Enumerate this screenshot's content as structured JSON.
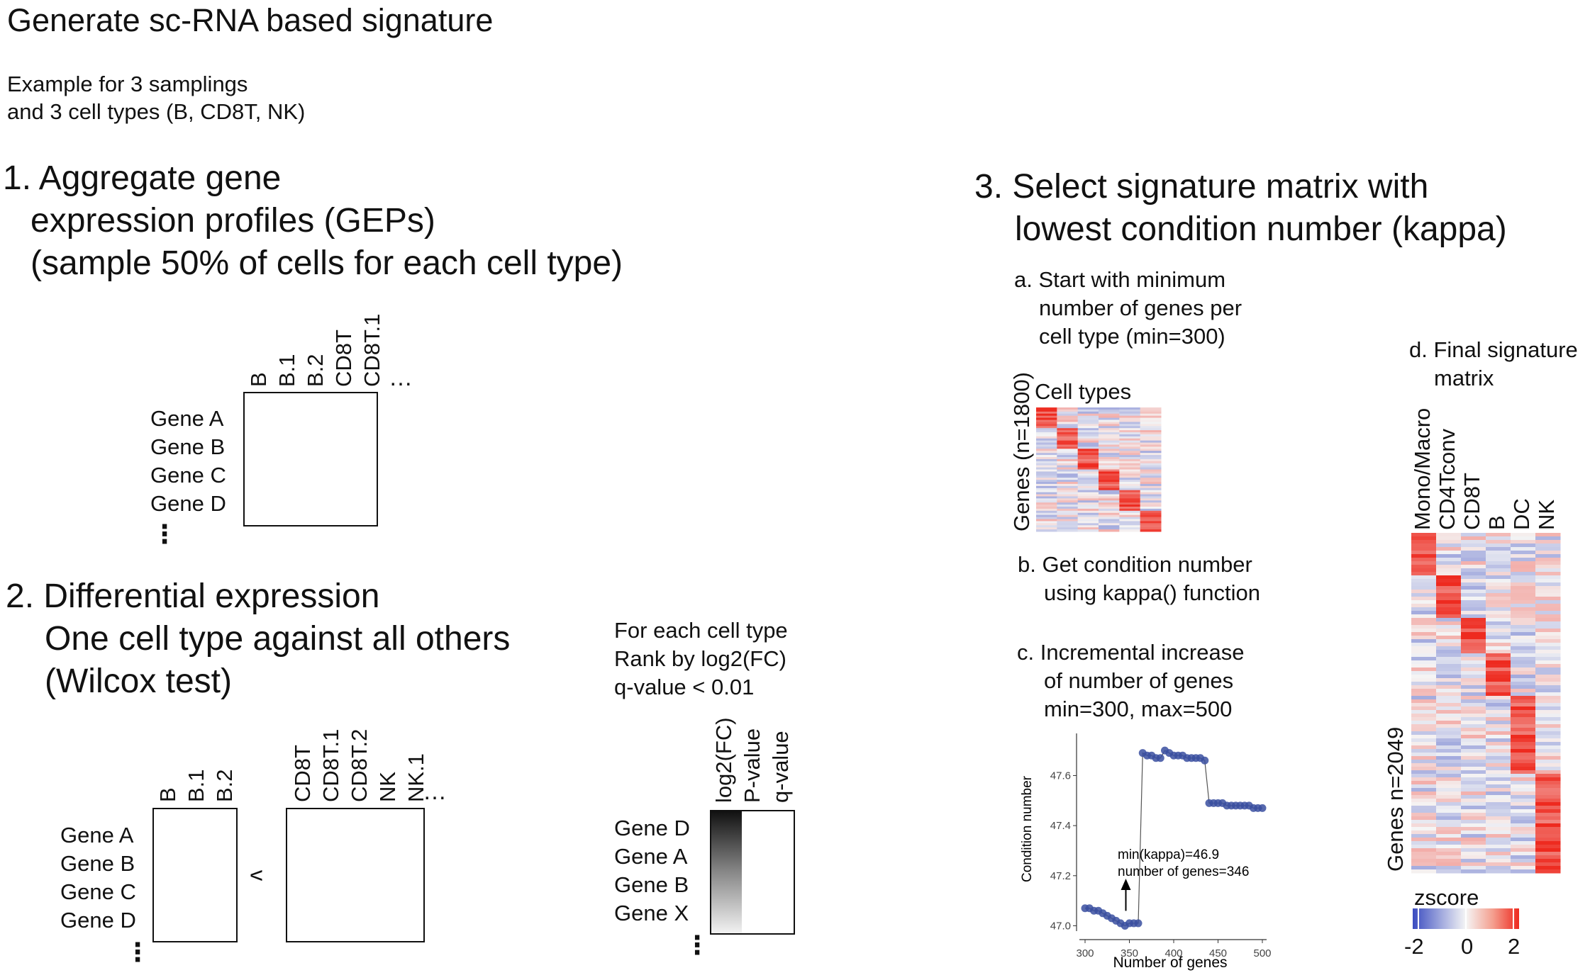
{
  "title": "Generate sc-RNA based signature",
  "subtitle": [
    "Example for 3 samplings",
    "and 3 cell types (B, CD8T, NK)"
  ],
  "step1": {
    "heading": [
      "1. Aggregate gene",
      "expression profiles (GEPs)",
      "(sample 50% of cells for each cell type)"
    ],
    "columns": [
      "B",
      "B.1",
      "B.2",
      "CD8T",
      "CD8T.1"
    ],
    "col_ellipsis": "…",
    "genes": [
      "Gene A",
      "Gene B",
      "Gene C",
      "Gene D"
    ],
    "row_ellipsis": "⋮"
  },
  "step2": {
    "heading": [
      "2. Differential expression",
      "One cell type against all others",
      "(Wilcox test)"
    ],
    "group1_columns": [
      "B",
      "B.1",
      "B.2"
    ],
    "group2_columns": [
      "CD8T",
      "CD8T.1",
      "CD8T.2",
      "NK",
      "NK.1"
    ],
    "col_ellipsis": "…",
    "comparator": "v",
    "genes": [
      "Gene A",
      "Gene B",
      "Gene C",
      "Gene D"
    ],
    "row_ellipsis": "⋮",
    "rank_text": [
      "For each cell type",
      "Rank by log2(FC)",
      "q-value < 0.01"
    ],
    "rank_columns": [
      "log2(FC)",
      "P-value",
      "q-value"
    ],
    "rank_genes": [
      "Gene D",
      "Gene A",
      "Gene B",
      "Gene X"
    ],
    "rank_ellipsis": "⋮"
  },
  "step3": {
    "heading": [
      "3. Select signature matrix with",
      "lowest condition number (kappa)"
    ],
    "a_text": [
      "a. Start with minimum",
      "number of genes per",
      "cell type (min=300)"
    ],
    "a_heatmap_xlabel": "Cell types",
    "a_heatmap_ylabel": "Genes (n=1800)",
    "b_text": [
      "b. Get condition number",
      "using kappa() function"
    ],
    "c_text": [
      "c. Incremental increase",
      "of number of genes",
      "min=300, max=500"
    ],
    "d_text": [
      "d. Final signature",
      "matrix"
    ],
    "d_columns": [
      "Mono/Macro",
      "CD4Tconv",
      "CD8T",
      "B",
      "DC",
      "NK"
    ],
    "d_ylabel": "Genes  n=2049",
    "legend_title": "zscore",
    "legend_ticks": [
      "-2",
      "0",
      "2"
    ],
    "colors": {
      "low": "#3b4cc0",
      "mid": "#f5f5f5",
      "high": "#ee2a1f",
      "line": "#3a4fa0"
    }
  },
  "chart_data": {
    "type": "line",
    "xlabel": "Number of genes",
    "ylabel": "Condition number",
    "xlim": [
      300,
      500
    ],
    "ylim": [
      46.99,
      47.74
    ],
    "xticks": [
      300,
      350,
      400,
      450,
      500
    ],
    "yticks": [
      47.0,
      47.2,
      47.4,
      47.6
    ],
    "annotation": [
      "min(kappa)=46.9",
      "number of genes=346"
    ],
    "annotation_x": 346,
    "series": [
      {
        "name": "kappa",
        "x": [
          300,
          305,
          310,
          315,
          320,
          325,
          330,
          335,
          340,
          345,
          350,
          355,
          360,
          365,
          370,
          375,
          380,
          385,
          390,
          395,
          400,
          405,
          410,
          415,
          420,
          425,
          430,
          435,
          440,
          445,
          450,
          455,
          460,
          465,
          470,
          475,
          480,
          485,
          490,
          495,
          500
        ],
        "y": [
          47.07,
          47.07,
          47.06,
          47.06,
          47.05,
          47.04,
          47.03,
          47.02,
          47.01,
          47.0,
          47.01,
          47.01,
          47.01,
          47.69,
          47.68,
          47.68,
          47.67,
          47.67,
          47.7,
          47.69,
          47.68,
          47.68,
          47.68,
          47.67,
          47.67,
          47.67,
          47.67,
          47.66,
          47.49,
          47.49,
          47.49,
          47.49,
          47.48,
          47.48,
          47.48,
          47.48,
          47.48,
          47.48,
          47.47,
          47.47,
          47.47
        ]
      }
    ]
  }
}
